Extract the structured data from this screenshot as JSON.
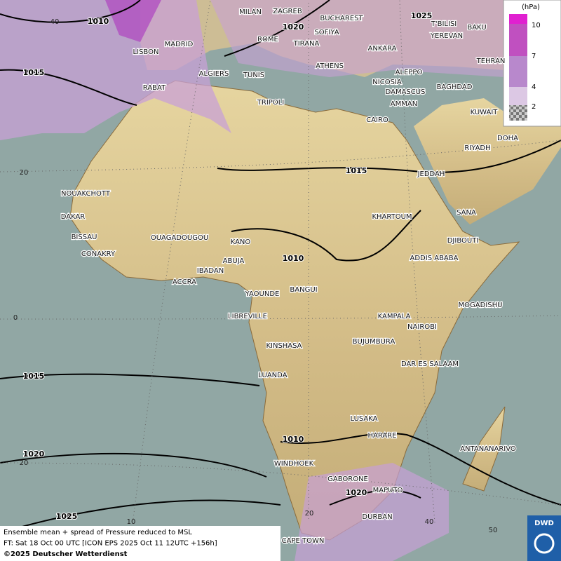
{
  "cities": [
    "MILAN",
    "ZAGREB",
    "BUCHAREST",
    "SOFIYA",
    "ROME",
    "TIRANA",
    "ATHENS",
    "ANKARA",
    "MADRID",
    "LISBON",
    "ALGIERS",
    "TUNIS",
    "RABAT",
    "TRIPOLI",
    "NICOSIA",
    "ALEPPO",
    "DAMASCUS",
    "AMMAN",
    "BAGHDAD",
    "T'BILISI",
    "YEREVAN",
    "BAKU",
    "TEHRAN",
    "KUWAIT",
    "DOHA",
    "RIYADH",
    "CAIRO",
    "JEDDAH",
    "SANA",
    "KHARTOUM",
    "DJIBOUTI",
    "ADDIS ABABA",
    "MOGADISHU",
    "NAIROBI",
    "KAMPALA",
    "BUJUMBURA",
    "DAR ES SALAAM",
    "NOUAKCHOTT",
    "DAKAR",
    "BISSAU",
    "CONAKRY",
    "OUAGADOUGOU",
    "KANO",
    "ABUJA",
    "IBADAN",
    "ACCRA",
    "YAOUNDE",
    "BANGUI",
    "LIBREVILLE",
    "KINSHASA",
    "LUANDA",
    "LUSAKA",
    "HARARE",
    "ANTANANARIVO",
    "WINDHOEK",
    "GABORONE",
    "MAPUTO",
    "DURBAN",
    "CAPE TOWN"
  ],
  "isobar_labels": [
    "1010",
    "1015",
    "1020",
    "1025",
    "1015",
    "1010",
    "1015",
    "1020",
    "1010",
    "1020",
    "1025"
  ],
  "grid_labels": [
    "40",
    "20",
    "0",
    "20",
    "10",
    "20",
    "40",
    "50"
  ],
  "legend": {
    "unit": "(hPa)",
    "levels": [
      10,
      7,
      4,
      2
    ]
  },
  "caption": {
    "lines": [
      "Ensemble mean + spread of Pressure reduced to MSL",
      "FT: Sat 18 Oct 00 UTC [ICON EPS 2025 Oct 11 12UTC +156h]",
      "©2025 Deutscher Wetterdienst"
    ]
  },
  "logo": "DWD"
}
